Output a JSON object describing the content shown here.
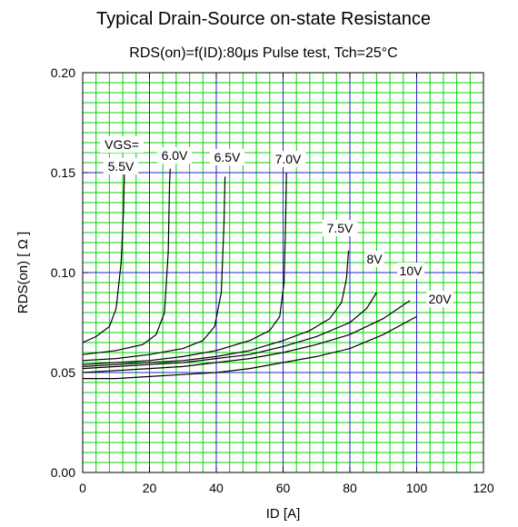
{
  "chart_data": {
    "type": "line",
    "title": "Typical Drain-Source on-state Resistance",
    "subtitle": "RDS(on)=f(ID):80μs Pulse test, Tch=25°C",
    "xlabel": "ID [A]",
    "ylabel": "RDS(on) [ Ω ]",
    "xlim": [
      0,
      120
    ],
    "ylim": [
      0,
      0.2
    ],
    "x_ticks": [
      "0",
      "20",
      "40",
      "60",
      "80",
      "100",
      "120"
    ],
    "y_ticks": [
      "0.00",
      "0.05",
      "0.10",
      "0.15",
      "0.20"
    ],
    "legend_header": "VGS=",
    "grid": true,
    "colors": {
      "major_grid": "#2323c8",
      "minor_grid": "#00d400",
      "curve": "#000000"
    },
    "series": [
      {
        "name": "5.5V",
        "x": [
          0,
          4,
          8,
          10,
          11.5,
          12.2,
          12.5,
          12.6
        ],
        "y": [
          0.065,
          0.068,
          0.073,
          0.082,
          0.105,
          0.13,
          0.15,
          0.152
        ]
      },
      {
        "name": "6.0V",
        "x": [
          0,
          10,
          18,
          22,
          24.5,
          25.6,
          26,
          26.2
        ],
        "y": [
          0.059,
          0.061,
          0.064,
          0.069,
          0.08,
          0.11,
          0.145,
          0.152
        ]
      },
      {
        "name": "6.5V",
        "x": [
          0,
          10,
          20,
          30,
          36,
          39.5,
          41.5,
          42.3,
          42.6
        ],
        "y": [
          0.056,
          0.057,
          0.059,
          0.062,
          0.066,
          0.073,
          0.09,
          0.125,
          0.148
        ]
      },
      {
        "name": "7.0V",
        "x": [
          0,
          10,
          20,
          30,
          40,
          50,
          56,
          59,
          60.3,
          60.8,
          61
        ],
        "y": [
          0.054,
          0.055,
          0.056,
          0.058,
          0.061,
          0.066,
          0.071,
          0.078,
          0.095,
          0.128,
          0.15
        ]
      },
      {
        "name": "7.5V",
        "x": [
          0,
          10,
          20,
          30,
          40,
          50,
          60,
          68,
          74,
          77.5,
          79,
          79.6
        ],
        "y": [
          0.053,
          0.054,
          0.055,
          0.056,
          0.058,
          0.061,
          0.066,
          0.071,
          0.077,
          0.085,
          0.097,
          0.111
        ]
      },
      {
        "name": "8V",
        "x": [
          0,
          10,
          20,
          30,
          40,
          50,
          60,
          70,
          80,
          85,
          88
        ],
        "y": [
          0.052,
          0.053,
          0.054,
          0.055,
          0.057,
          0.059,
          0.063,
          0.068,
          0.075,
          0.082,
          0.09
        ]
      },
      {
        "name": "10V",
        "x": [
          0,
          10,
          20,
          30,
          40,
          50,
          60,
          70,
          80,
          90,
          98
        ],
        "y": [
          0.05,
          0.051,
          0.052,
          0.053,
          0.055,
          0.057,
          0.06,
          0.064,
          0.069,
          0.077,
          0.086
        ]
      },
      {
        "name": "20V",
        "x": [
          0,
          10,
          20,
          30,
          40,
          50,
          60,
          70,
          80,
          90,
          100
        ],
        "y": [
          0.047,
          0.047,
          0.048,
          0.049,
          0.05,
          0.052,
          0.055,
          0.058,
          0.062,
          0.069,
          0.078
        ]
      }
    ]
  }
}
